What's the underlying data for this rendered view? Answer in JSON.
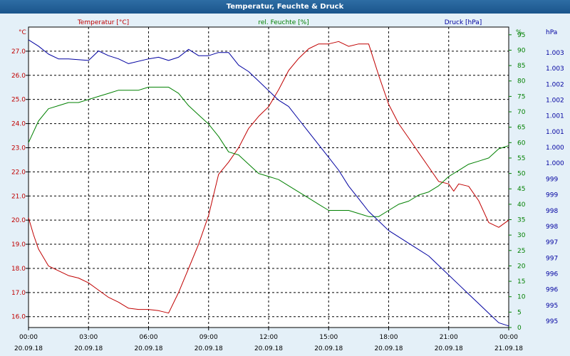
{
  "window": {
    "title": "Temperatur, Feuchte & Druck"
  },
  "colors": {
    "background": "#e4f0f8",
    "plot_background": "#ffffff",
    "temperature": "#c00000",
    "humidity": "#008000",
    "pressure": "#0000a0",
    "grid": "#000000"
  },
  "chart_data": {
    "type": "line",
    "grid": true,
    "x_ticks": [
      {
        "time": "00:00",
        "date": "20.09.18"
      },
      {
        "time": "03:00",
        "date": "20.09.18"
      },
      {
        "time": "06:00",
        "date": "20.09.18"
      },
      {
        "time": "09:00",
        "date": "20.09.18"
      },
      {
        "time": "12:00",
        "date": "20.09.18"
      },
      {
        "time": "15:00",
        "date": "20.09.18"
      },
      {
        "time": "18:00",
        "date": "20.09.18"
      },
      {
        "time": "21:00",
        "date": "20.09.18"
      },
      {
        "time": "00:00",
        "date": "21.09.18"
      }
    ],
    "xlim_hours": [
      0,
      24
    ],
    "axes": {
      "left": {
        "label": "Temperatur [°C]",
        "unit": "°C",
        "ticks": [
          "27.0",
          "26.0",
          "25.0",
          "24.0",
          "23.0",
          "22.0",
          "21.0",
          "20.0",
          "19.0",
          "18.0",
          "17.0",
          "16.0"
        ],
        "ylim": [
          15.55,
          28.0
        ]
      },
      "right1": {
        "label": "rel. Feuchte [%]",
        "unit": "%",
        "ticks": [
          "95",
          "90",
          "85",
          "80",
          "75",
          "70",
          "65",
          "60",
          "55",
          "50",
          "45",
          "40",
          "35",
          "30",
          "25",
          "20",
          "15",
          "10",
          "5",
          "0"
        ],
        "ylim": [
          0,
          97.5
        ]
      },
      "right2": {
        "label": "Druck [hPa]",
        "unit": "hPa",
        "ticks": [
          "1.003",
          "1.003",
          "1.002",
          "1.002",
          "1.001",
          "1.001",
          "1.000",
          "1.000",
          "999",
          "999",
          "998",
          "998",
          "997",
          "997",
          "996",
          "996",
          "995",
          "995"
        ],
        "ylim": [
          994.45,
          1003.9
        ]
      }
    },
    "series": [
      {
        "name": "Temperatur [°C]",
        "axis": "left",
        "hours": [
          0,
          0.25,
          0.5,
          1,
          1.5,
          2,
          2.5,
          3,
          3.5,
          4,
          4.5,
          5,
          5.5,
          6,
          6.5,
          7,
          7.5,
          8,
          8.5,
          9,
          9.5,
          10,
          10.5,
          11,
          11.5,
          12,
          12.5,
          13,
          13.5,
          14,
          14.5,
          15,
          15.5,
          16,
          16.5,
          17,
          17.5,
          18,
          18.5,
          19,
          19.5,
          20,
          20.5,
          21,
          21.25,
          21.5,
          22,
          22.5,
          23,
          23.5,
          24
        ],
        "values": [
          20.1,
          19.4,
          18.8,
          18.1,
          17.9,
          17.7,
          17.6,
          17.4,
          17.1,
          16.8,
          16.6,
          16.35,
          16.3,
          16.3,
          16.25,
          16.15,
          17.0,
          18.0,
          19.0,
          20.2,
          21.9,
          22.4,
          23.0,
          23.8,
          24.3,
          24.7,
          25.4,
          26.2,
          26.7,
          27.1,
          27.3,
          27.3,
          27.4,
          27.2,
          27.3,
          27.3,
          26.0,
          24.8,
          24.0,
          23.4,
          22.8,
          22.2,
          21.6,
          21.5,
          21.2,
          21.5,
          21.4,
          20.8,
          19.9,
          19.7,
          20.0
        ]
      },
      {
        "name": "rel. Feuchte [%]",
        "axis": "right1",
        "hours": [
          0,
          0.5,
          1,
          1.5,
          2,
          2.5,
          3,
          3.5,
          4,
          4.5,
          5,
          5.5,
          6,
          6.5,
          7,
          7.5,
          8,
          8.5,
          9,
          9.5,
          10,
          10.5,
          11,
          11.5,
          12,
          12.5,
          13,
          13.5,
          14,
          14.5,
          15,
          15.5,
          16,
          16.5,
          17,
          17.5,
          18,
          18.5,
          19,
          19.5,
          20,
          20.5,
          21,
          21.5,
          22,
          22.5,
          23,
          23.5,
          24
        ],
        "values": [
          60,
          67,
          71,
          72,
          73,
          73,
          74,
          75,
          76,
          77,
          77,
          77,
          78,
          78,
          78,
          76,
          72,
          69,
          66,
          62,
          57,
          56,
          53,
          50,
          49,
          48,
          46,
          44,
          42,
          40,
          38,
          38,
          38,
          37,
          36,
          36,
          38,
          40,
          41,
          43,
          44,
          46,
          49,
          51,
          53,
          54,
          55,
          58,
          59
        ]
      },
      {
        "name": "Druck [hPa]",
        "axis": "right2",
        "hours": [
          0,
          0.5,
          1,
          1.5,
          2,
          3,
          3.5,
          4,
          4.5,
          5,
          6,
          6.5,
          7,
          7.5,
          8,
          8.5,
          9,
          9.5,
          10,
          10.5,
          11,
          11.5,
          12,
          12.5,
          13,
          13.5,
          14,
          14.5,
          15,
          15.5,
          16,
          16.5,
          17,
          17.5,
          18,
          18.5,
          19,
          19.5,
          20,
          20.5,
          21,
          21.5,
          22,
          22.5,
          23,
          23.5,
          24
        ],
        "values": [
          1003.5,
          1003.3,
          1003.05,
          1002.9,
          1002.9,
          1002.85,
          1003.15,
          1003.0,
          1002.9,
          1002.75,
          1002.9,
          1002.95,
          1002.85,
          1002.95,
          1003.2,
          1003.0,
          1003.0,
          1003.1,
          1003.1,
          1002.7,
          1002.5,
          1002.2,
          1001.9,
          1001.6,
          1001.4,
          1001.0,
          1000.6,
          1000.2,
          999.8,
          999.4,
          998.9,
          998.5,
          998.1,
          997.8,
          997.5,
          997.3,
          997.1,
          996.9,
          996.7,
          996.4,
          996.1,
          995.8,
          995.5,
          995.2,
          994.9,
          994.6,
          994.5
        ]
      }
    ]
  }
}
